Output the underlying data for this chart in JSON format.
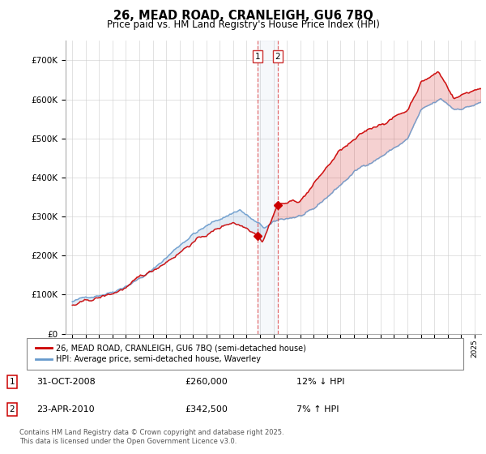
{
  "title": "26, MEAD ROAD, CRANLEIGH, GU6 7BQ",
  "subtitle": "Price paid vs. HM Land Registry's House Price Index (HPI)",
  "legend_line1": "26, MEAD ROAD, CRANLEIGH, GU6 7BQ (semi-detached house)",
  "legend_line2": "HPI: Average price, semi-detached house, Waverley",
  "footer": "Contains HM Land Registry data © Crown copyright and database right 2025.\nThis data is licensed under the Open Government Licence v3.0.",
  "sale1_label": "1",
  "sale1_date": "31-OCT-2008",
  "sale1_price": "£260,000",
  "sale1_hpi": "12% ↓ HPI",
  "sale2_label": "2",
  "sale2_date": "23-APR-2010",
  "sale2_price": "£342,500",
  "sale2_hpi": "7% ↑ HPI",
  "red_color": "#cc0000",
  "blue_color": "#6699cc",
  "sale1_x": 2008.83,
  "sale2_x": 2010.31,
  "ylim_min": 0,
  "ylim_max": 750000,
  "xlim_min": 1994.5,
  "xlim_max": 2025.5
}
